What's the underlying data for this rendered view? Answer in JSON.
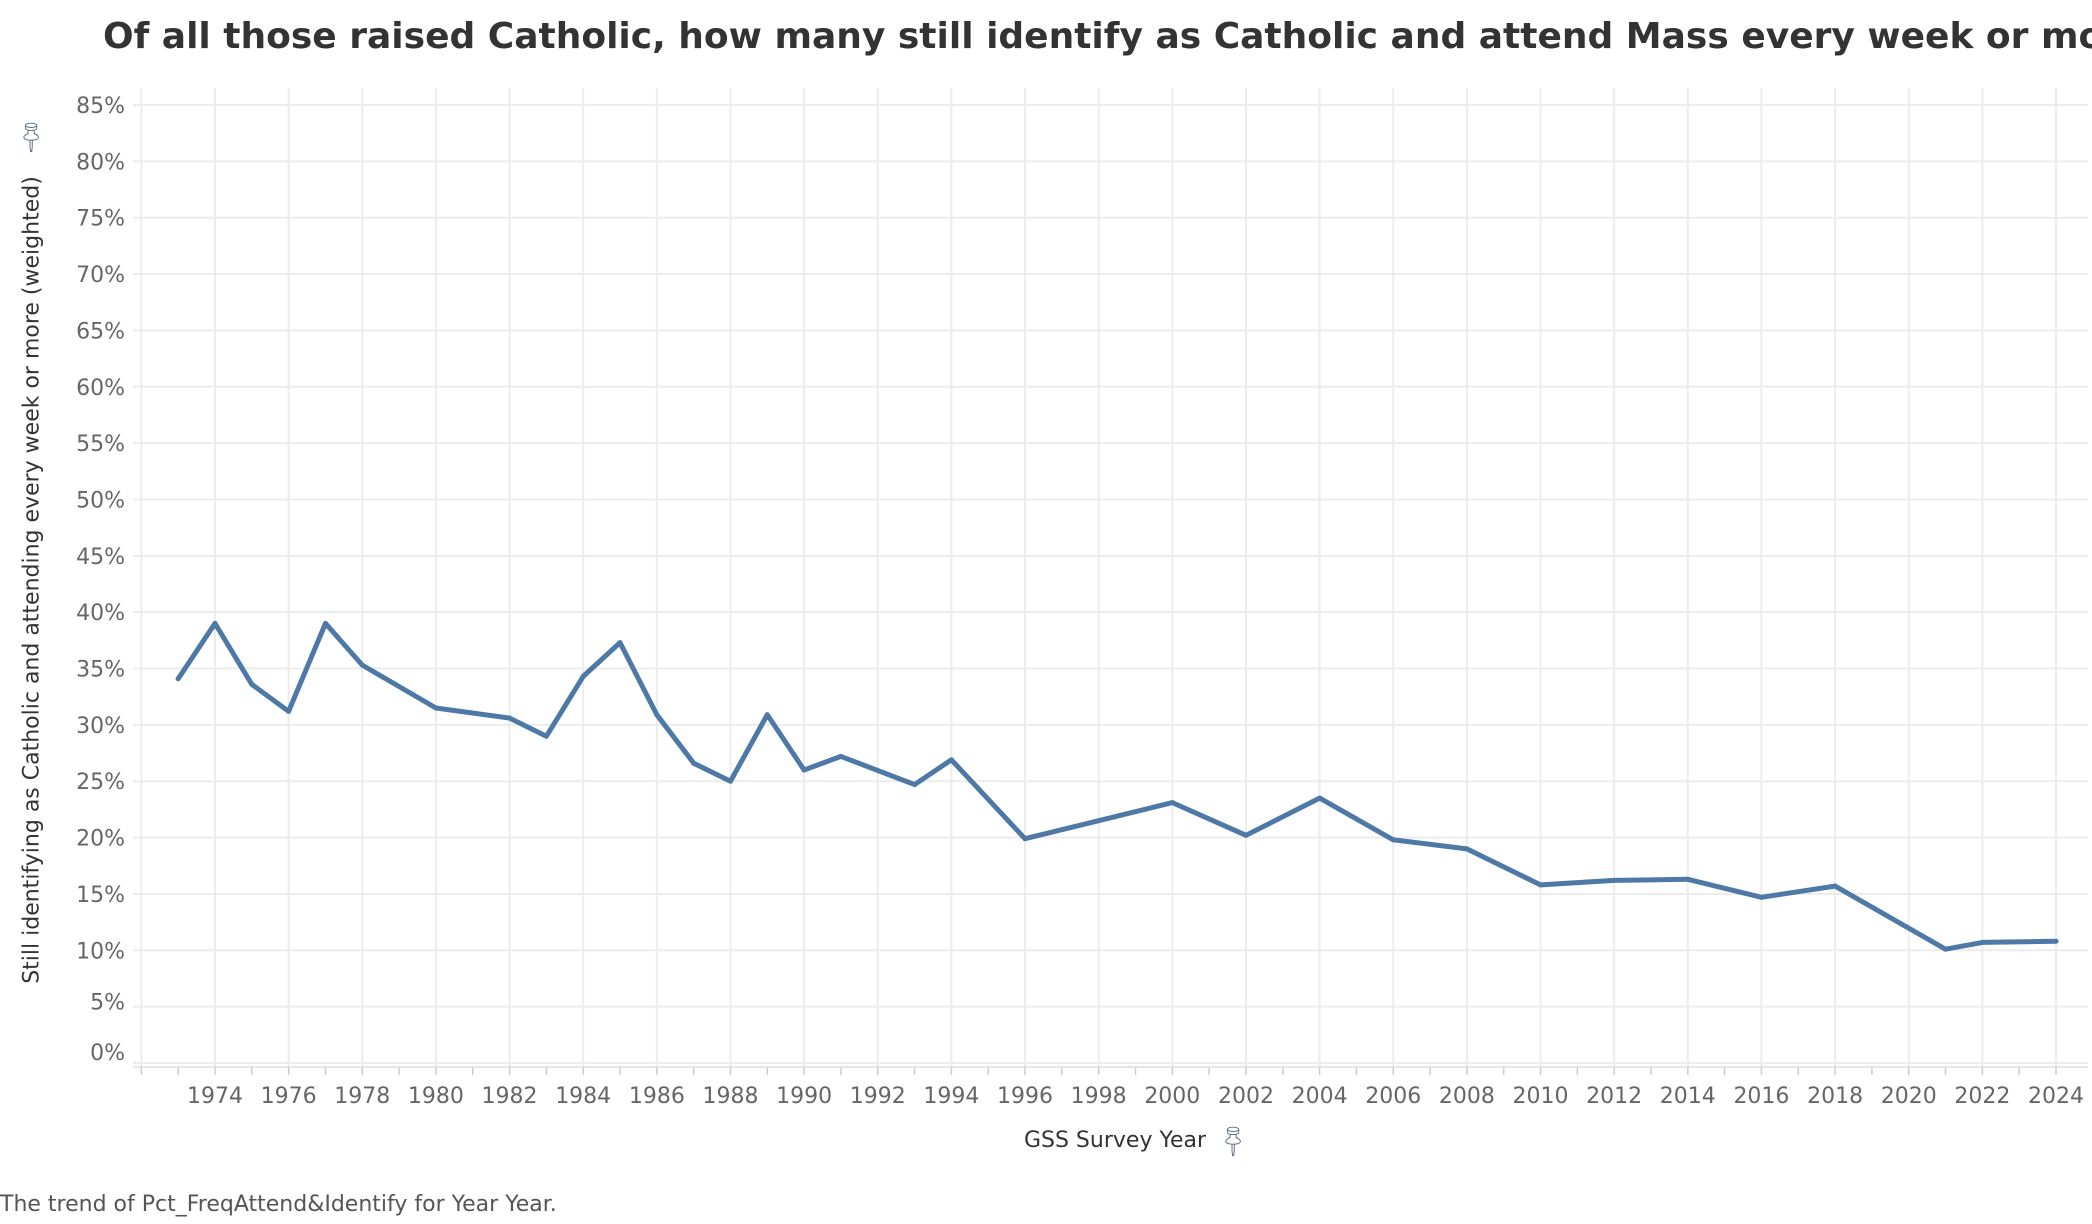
{
  "chart_data": {
    "type": "line",
    "title": "Of all those raised Catholic, how many still identify as Catholic and attend Mass every week or more?",
    "xlabel": "GSS Survey Year",
    "ylabel": "Still identifying as Catholic and attending every week or more (weighted)",
    "ylim": [
      0,
      85
    ],
    "xlim": [
      1972,
      2025
    ],
    "y_ticks": [
      "0%",
      "5%",
      "10%",
      "15%",
      "20%",
      "25%",
      "30%",
      "35%",
      "40%",
      "45%",
      "50%",
      "55%",
      "60%",
      "65%",
      "70%",
      "75%",
      "80%",
      "85%"
    ],
    "x_ticks": [
      "1974",
      "1976",
      "1978",
      "1980",
      "1982",
      "1984",
      "1986",
      "1988",
      "1990",
      "1992",
      "1994",
      "1996",
      "1998",
      "2000",
      "2002",
      "2004",
      "2006",
      "2008",
      "2010",
      "2012",
      "2014",
      "2016",
      "2018",
      "2020",
      "2022",
      "2024"
    ],
    "grid": true,
    "color": "#4e79a7",
    "series": [
      {
        "name": "Pct_FreqAttend&Identify",
        "x": [
          1973,
          1974,
          1975,
          1976,
          1977,
          1978,
          1980,
          1982,
          1983,
          1984,
          1985,
          1986,
          1987,
          1988,
          1989,
          1990,
          1991,
          1993,
          1994,
          1996,
          1998,
          2000,
          2002,
          2004,
          2006,
          2008,
          2010,
          2012,
          2014,
          2016,
          2018,
          2021,
          2022,
          2024
        ],
        "y": [
          34.1,
          39.0,
          33.6,
          31.2,
          39.0,
          35.3,
          31.5,
          30.6,
          29.0,
          34.3,
          37.3,
          30.9,
          26.6,
          25.0,
          30.9,
          26.0,
          27.2,
          24.7,
          26.9,
          19.9,
          21.5,
          23.1,
          20.2,
          23.5,
          19.8,
          19.0,
          15.8,
          16.2,
          16.3,
          14.7,
          15.7,
          10.1,
          10.7,
          10.8
        ]
      }
    ]
  },
  "footer": "The trend of Pct_FreqAttend&Identify for Year Year.",
  "icons": {
    "y_pin": "pin-icon",
    "x_pin": "pin-icon"
  }
}
